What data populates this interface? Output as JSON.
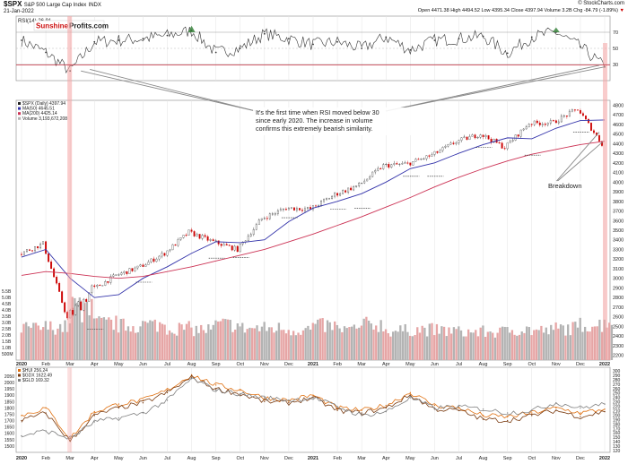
{
  "header": {
    "symbol": "$SPX",
    "name": "S&P 500 Large Cap Index",
    "exchange": "INDX",
    "date": "21-Jan-2022",
    "copyright": "© StockCharts.com",
    "quote": "Open 4471.38  High 4494.52  Low 4395.34  Close 4397.94  Volume 3.2B  Chg -84.79 (-1.89%)",
    "quote_change_arrow": "▼"
  },
  "brand": {
    "sunshine": "Sunshine",
    "profits": "Profits.com"
  },
  "colors": {
    "price_up": "#222222",
    "price_down": "#cc0000",
    "ma50": "#3333aa",
    "ma200": "#cc3355",
    "highlight": "#f4a3a3",
    "hui": "#e07010",
    "gdx": "#7a3b10",
    "gld": "#808080"
  },
  "chart_data": [
    {
      "type": "line",
      "title": "RSI(14) 26.91",
      "x": [
        "2020-01",
        "2020-02",
        "2020-03",
        "2020-04",
        "2020-05",
        "2020-06",
        "2020-07",
        "2020-08",
        "2020-09",
        "2020-10",
        "2020-11",
        "2020-12",
        "2021-01",
        "2021-02",
        "2021-03",
        "2021-04",
        "2021-05",
        "2021-06",
        "2021-07",
        "2021-08",
        "2021-09",
        "2021-10",
        "2021-11",
        "2021-12",
        "2022-01"
      ],
      "series": [
        {
          "name": "RSI(14)",
          "values": [
            60,
            45,
            22,
            58,
            60,
            62,
            66,
            72,
            45,
            50,
            68,
            62,
            55,
            58,
            50,
            64,
            48,
            60,
            62,
            65,
            44,
            64,
            70,
            52,
            27
          ]
        }
      ],
      "yticks": [
        70,
        50,
        30
      ],
      "ylim": [
        10,
        90
      ]
    },
    {
      "type": "line",
      "title": "$SPX (Daily) 4397.94",
      "legend": [
        "$SPX (Daily) 4397.94",
        "MA(50) 4645.51",
        "MA(200) 4425.14",
        "Volume 3,193,672,208"
      ],
      "x": [
        "2020-01",
        "2020-02",
        "2020-03",
        "2020-04",
        "2020-05",
        "2020-06",
        "2020-07",
        "2020-08",
        "2020-09",
        "2020-10",
        "2020-11",
        "2020-12",
        "2021-01",
        "2021-02",
        "2021-03",
        "2021-04",
        "2021-05",
        "2021-06",
        "2021-07",
        "2021-08",
        "2021-09",
        "2021-10",
        "2021-11",
        "2021-12",
        "2022-01"
      ],
      "series": [
        {
          "name": "$SPX",
          "values": [
            3250,
            3360,
            2580,
            2880,
            3030,
            3120,
            3260,
            3480,
            3380,
            3300,
            3620,
            3730,
            3720,
            3870,
            3970,
            4170,
            4190,
            4280,
            4420,
            4500,
            4360,
            4610,
            4620,
            4760,
            4398
          ]
        },
        {
          "name": "MA(50)",
          "values": [
            3220,
            3300,
            3000,
            2800,
            2830,
            3000,
            3120,
            3260,
            3380,
            3370,
            3400,
            3590,
            3730,
            3800,
            3880,
            4000,
            4140,
            4200,
            4300,
            4390,
            4460,
            4450,
            4560,
            4640,
            4646
          ]
        },
        {
          "name": "MA(200)",
          "values": [
            3030,
            3070,
            3050,
            3020,
            3000,
            3020,
            3070,
            3120,
            3180,
            3240,
            3300,
            3380,
            3460,
            3550,
            3640,
            3740,
            3840,
            3950,
            4050,
            4140,
            4220,
            4290,
            4340,
            4390,
            4425
          ]
        }
      ],
      "yticks": [
        4800,
        4700,
        4600,
        4500,
        4400,
        4300,
        4200,
        4100,
        4000,
        3900,
        3800,
        3700,
        3600,
        3500,
        3400,
        3300,
        3200,
        3100,
        3000,
        2900,
        2800,
        2700,
        2600,
        2500,
        2400,
        2300,
        2200
      ],
      "ylim": [
        2150,
        4850
      ],
      "volume_labels": [
        "5.5B",
        "5.0B",
        "4.5B",
        "4.0B",
        "3.5B",
        "3.0B",
        "2.5B",
        "2.0B",
        "1.5B",
        "1.0B",
        "500M"
      ],
      "volume_values": [
        2.6,
        2.7,
        4.8,
        3.0,
        2.8,
        2.9,
        2.6,
        2.5,
        2.9,
        2.6,
        2.6,
        2.5,
        2.8,
        2.5,
        2.9,
        2.4,
        2.5,
        2.4,
        2.3,
        2.3,
        2.5,
        2.4,
        2.6,
        2.9,
        3.2
      ],
      "x_labels": [
        "2020",
        "Feb",
        "Mar",
        "Apr",
        "May",
        "Jun",
        "Jul",
        "Aug",
        "Sep",
        "Oct",
        "Nov",
        "Dec",
        "2021",
        "Feb",
        "Mar",
        "Apr",
        "May",
        "Jun",
        "Jul",
        "Aug",
        "Sep",
        "Oct",
        "Nov",
        "Dec",
        "2022"
      ]
    },
    {
      "type": "line",
      "title": "$HUI 256.24",
      "legend": [
        "$HUI 256.24",
        "$GDX 1622.49",
        "$GLD 169.32"
      ],
      "x": [
        "2020-01",
        "2020-02",
        "2020-03",
        "2020-04",
        "2020-05",
        "2020-06",
        "2020-07",
        "2020-08",
        "2020-09",
        "2020-10",
        "2020-11",
        "2020-12",
        "2021-01",
        "2021-02",
        "2021-03",
        "2021-04",
        "2021-05",
        "2021-06",
        "2021-07",
        "2021-08",
        "2021-09",
        "2021-10",
        "2021-11",
        "2021-12",
        "2022-01"
      ],
      "series": [
        {
          "name": "$HUI",
          "values": [
            1740,
            1800,
            1560,
            1770,
            1830,
            1860,
            1940,
            2060,
            1980,
            1940,
            1880,
            1860,
            1900,
            1800,
            1780,
            1820,
            1920,
            1820,
            1800,
            1740,
            1730,
            1760,
            1800,
            1760,
            1790
          ]
        },
        {
          "name": "$GDX",
          "values": [
            1700,
            1760,
            1540,
            1740,
            1800,
            1840,
            1920,
            2040,
            1950,
            1910,
            1850,
            1840,
            1880,
            1780,
            1760,
            1800,
            1900,
            1790,
            1780,
            1710,
            1700,
            1740,
            1780,
            1730,
            1770
          ]
        },
        {
          "name": "$GLD",
          "values": [
            1580,
            1620,
            1560,
            1690,
            1720,
            1760,
            1860,
            2030,
            1940,
            1910,
            1880,
            1860,
            1880,
            1810,
            1740,
            1770,
            1880,
            1800,
            1810,
            1790,
            1760,
            1780,
            1840,
            1800,
            1830
          ]
        }
      ],
      "ylim": [
        1450,
        2120
      ],
      "yticks": [
        2050,
        2000,
        1950,
        1900,
        1850,
        1800,
        1750,
        1700,
        1650,
        1600,
        1550,
        1500
      ],
      "right_ticks": [
        300,
        290,
        280,
        270,
        260,
        250,
        240,
        230,
        220,
        210,
        200,
        190,
        180,
        170,
        160,
        150,
        140,
        130,
        120
      ]
    }
  ],
  "annotations": {
    "rsi_text": "It's the first time when RSI moved below 30 since early 2020. The increase in volume confirms this extremely bearish similarity.",
    "breakdown": "Breakdown"
  }
}
